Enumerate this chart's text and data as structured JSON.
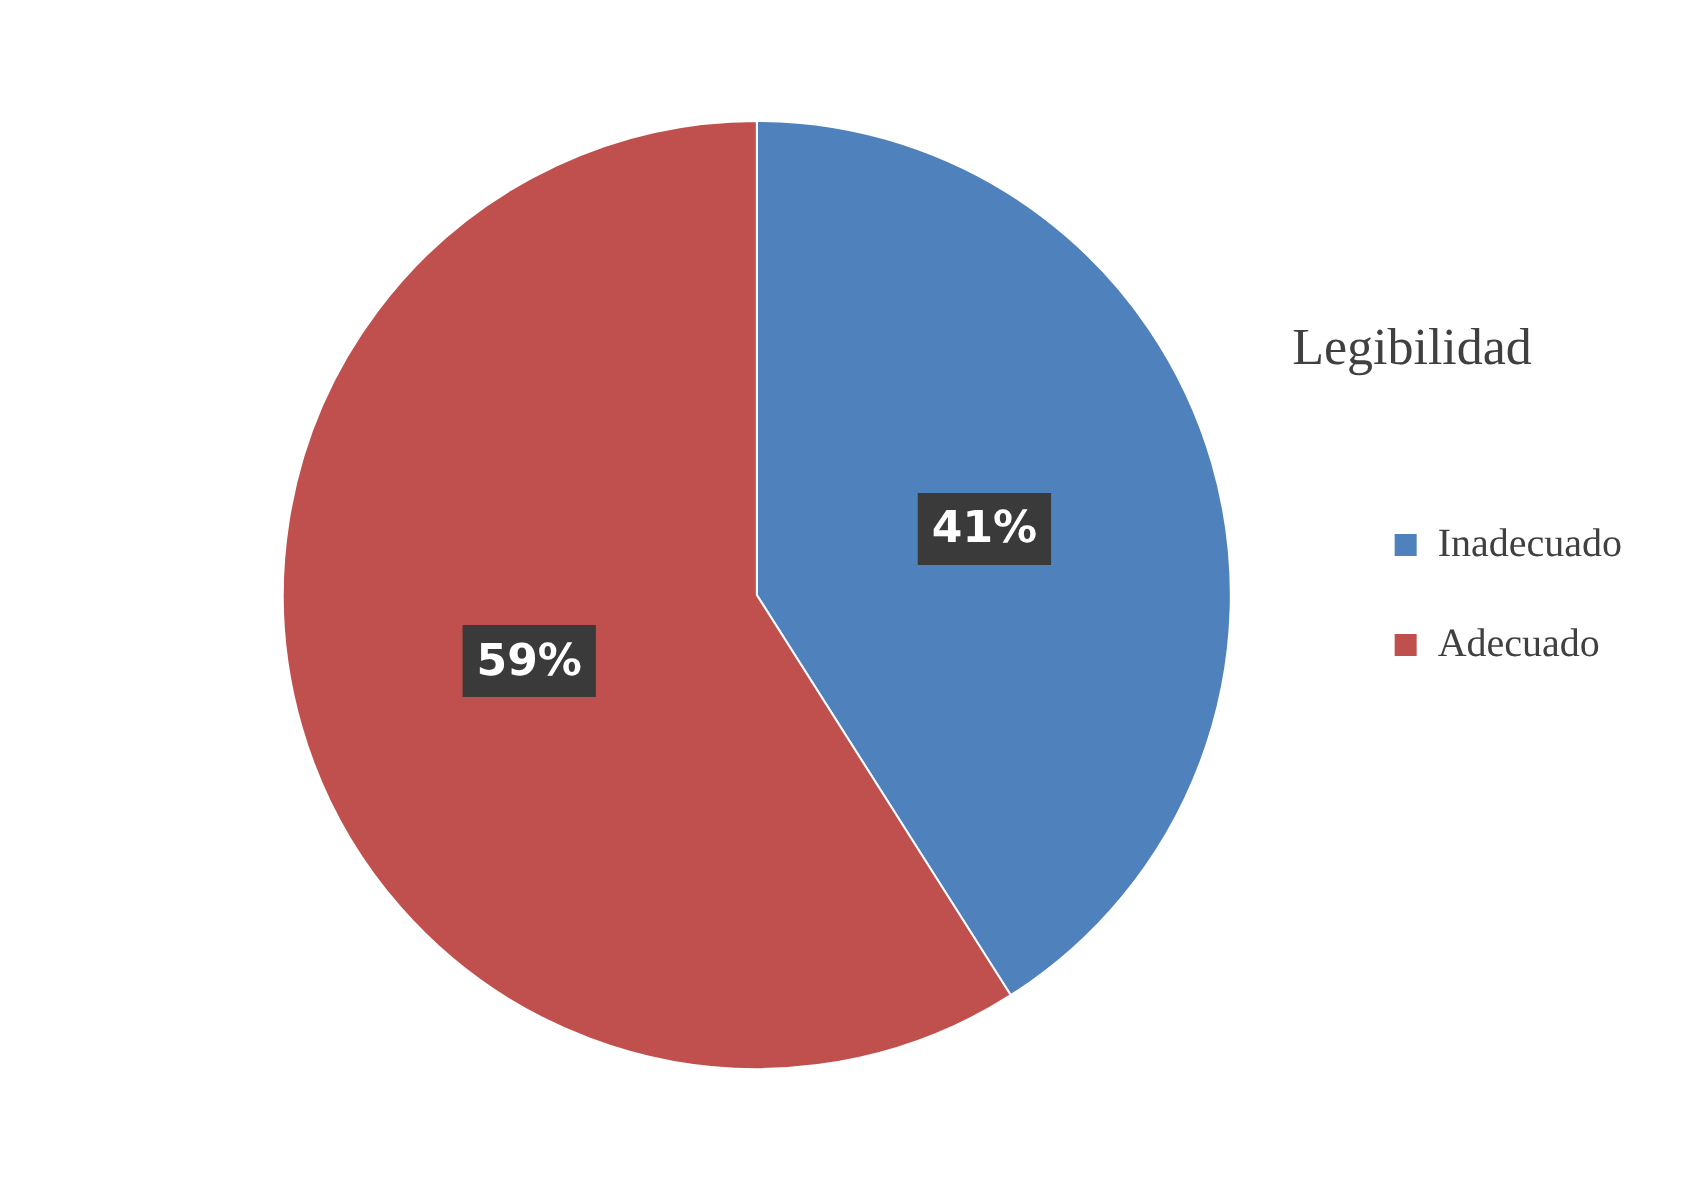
{
  "chart_data": {
    "type": "pie",
    "title": "Legibilidad",
    "categories": [
      "Inadecuado",
      "Adecuado"
    ],
    "values": [
      41,
      59
    ],
    "colors": [
      "#4f81bd",
      "#c0504d"
    ],
    "value_labels": [
      "41%",
      "59%"
    ],
    "legend": "right"
  }
}
